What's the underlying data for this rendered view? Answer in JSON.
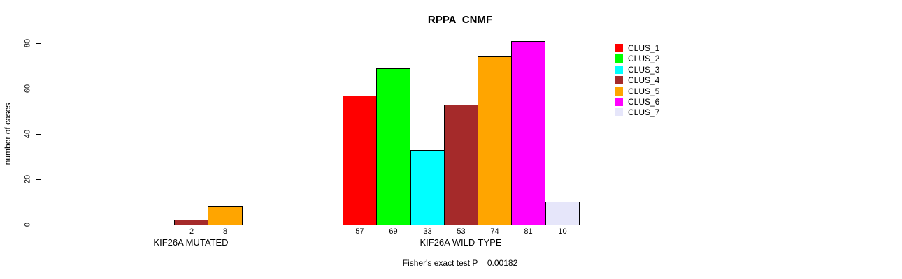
{
  "background": "#ffffff",
  "chart_data": {
    "type": "bar",
    "title": "RPPA_CNMF",
    "ylabel": "number of cases",
    "xlabel": "",
    "ylim": [
      0,
      80
    ],
    "yticks": [
      0,
      20,
      40,
      60,
      80
    ],
    "grid": false,
    "legend_position": "right",
    "legend": [
      "CLUS_1",
      "CLUS_2",
      "CLUS_3",
      "CLUS_4",
      "CLUS_5",
      "CLUS_6",
      "CLUS_7"
    ],
    "legend_colors": [
      "#FF0000",
      "#00FF00",
      "#00FFFF",
      "#A52A2A",
      "#FFA500",
      "#FF00FF",
      "#E6E6FA"
    ],
    "bar_border_color": "#000000",
    "groups": [
      {
        "label": "KIF26A MUTATED",
        "categories": [
          "CLUS_1",
          "CLUS_2",
          "CLUS_3",
          "CLUS_4",
          "CLUS_5",
          "CLUS_6",
          "CLUS_7"
        ],
        "values": [
          0,
          0,
          0,
          2,
          8,
          0,
          0
        ],
        "shown_value_labels": [
          "2",
          "8"
        ]
      },
      {
        "label": "KIF26A WILD-TYPE",
        "categories": [
          "CLUS_1",
          "CLUS_2",
          "CLUS_3",
          "CLUS_4",
          "CLUS_5",
          "CLUS_6",
          "CLUS_7"
        ],
        "values": [
          57,
          69,
          33,
          53,
          74,
          81,
          10
        ],
        "shown_value_labels": [
          "57",
          "69",
          "33",
          "53",
          "74",
          "81",
          "10"
        ]
      }
    ],
    "annotation": "Fisher's exact test P = 0.00182"
  }
}
